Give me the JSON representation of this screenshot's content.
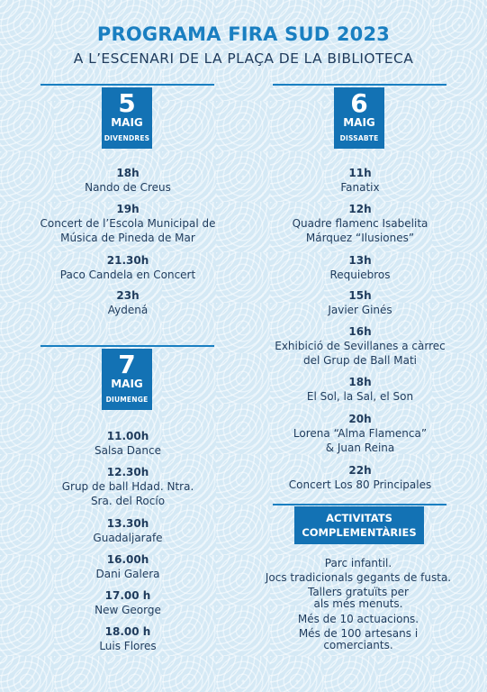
{
  "header": {
    "title": "PROGRAMA FIRA SUD 2023",
    "subtitle": "A L’ESCENARI DE LA PLAÇA DE LA BIBLIOTECA"
  },
  "days": [
    {
      "number": "5",
      "month": "MAIG",
      "weekday": "DIVENDRES",
      "events": [
        {
          "time": "18h",
          "name": "Nando de Creus"
        },
        {
          "time": "19h",
          "name": "Concert de l’Escola Municipal de Música de Pineda de Mar"
        },
        {
          "time": "21.30h",
          "name": "Paco Candela en Concert"
        },
        {
          "time": "23h",
          "name": "Aydená"
        }
      ]
    },
    {
      "number": "6",
      "month": "MAIG",
      "weekday": "DISSABTE",
      "events": [
        {
          "time": "11h",
          "name": "Fanatix"
        },
        {
          "time": "12h",
          "name": "Quadre flamenc Isabelita Márquez “Ilusiones”"
        },
        {
          "time": "13h",
          "name": "Requiebros"
        },
        {
          "time": "15h",
          "name": "Javier Ginés"
        },
        {
          "time": "16h",
          "name": "Exhibició de Sevillanes a càrrec del Grup de Ball Mati"
        },
        {
          "time": "18h",
          "name": "El Sol, la Sal, el Son"
        },
        {
          "time": "20h",
          "name": "Lorena “Alma Flamenca” & Juan Reina"
        },
        {
          "time": "22h",
          "name": "Concert Los 80 Principales"
        }
      ]
    },
    {
      "number": "7",
      "month": "MAIG",
      "weekday": "DIUMENGE",
      "events": [
        {
          "time": "11.00h",
          "name": "Salsa Dance"
        },
        {
          "time": "12.30h",
          "name": "Grup de ball Hdad. Ntra. Sra. del Rocío"
        },
        {
          "time": "13.30h",
          "name": "Guadaljarafe"
        },
        {
          "time": "16.00h",
          "name": "Dani Galera"
        },
        {
          "time": "17.00 h",
          "name": "New George"
        },
        {
          "time": "18.00 h",
          "name": "Luis Flores"
        }
      ]
    }
  ],
  "activities": {
    "title_line1": "ACTIVITATS",
    "title_line2": "COMPLEMENTÀRIES",
    "items": [
      "Parc infantil.",
      "Jocs tradicionals gegants de fusta.",
      "Tallers gratuïts per als més menuts.",
      "Més de 10 actuacions.",
      "Més de 100 artesans i comerciants."
    ]
  },
  "colors": {
    "accent": "#1a7fc1",
    "box": "#1372b4",
    "text": "#1f3b5c",
    "background": "#d5e9f5"
  }
}
